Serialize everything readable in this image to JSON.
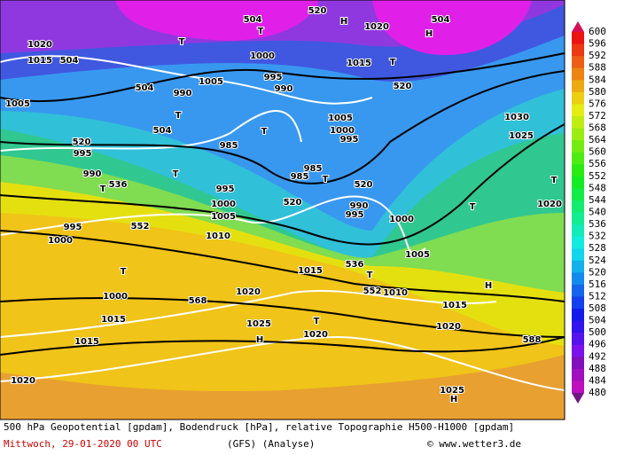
{
  "colorbar": {
    "labels": [
      "600",
      "596",
      "592",
      "588",
      "584",
      "580",
      "576",
      "572",
      "568",
      "564",
      "560",
      "556",
      "552",
      "548",
      "544",
      "540",
      "536",
      "532",
      "528",
      "524",
      "520",
      "516",
      "512",
      "508",
      "504",
      "500",
      "496",
      "492",
      "488",
      "484",
      "480"
    ]
  },
  "map": {
    "labels": [
      "504",
      "504",
      "504",
      "504",
      "504",
      "520",
      "520",
      "520",
      "520",
      "520",
      "536",
      "536",
      "552",
      "552",
      "568",
      "588",
      "1020",
      "1015",
      "1005",
      "995",
      "990",
      "995",
      "1000",
      "1000",
      "1015",
      "1015",
      "1020",
      "1000",
      "995",
      "990",
      "990",
      "1005",
      "985",
      "985",
      "985",
      "995",
      "1000",
      "1005",
      "1010",
      "1015",
      "1020",
      "1025",
      "1020",
      "1005",
      "1000",
      "995",
      "990",
      "995",
      "1000",
      "1005",
      "1010",
      "1015",
      "1020",
      "1025",
      "1015",
      "1020",
      "1030",
      "1025",
      "1020",
      "H",
      "H",
      "H",
      "H",
      "H",
      "T",
      "T",
      "T",
      "T",
      "T",
      "T",
      "T",
      "T",
      "T",
      "T",
      "T",
      "T",
      "T"
    ]
  },
  "footer": {
    "line1": "500 hPa Geopotential [gpdam], Bodendruck [hPa], relative Topographie H500-H1000 [gpdam]",
    "date": "Mittwoch, 29-01-2020  00 UTC",
    "model": "(GFS)  (Analyse)",
    "credit": "© www.wetter3.de"
  }
}
